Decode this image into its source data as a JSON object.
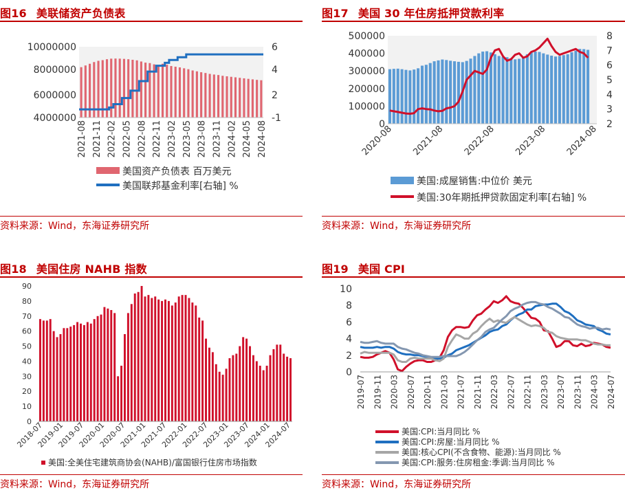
{
  "colors": {
    "title_red": "#c00000",
    "bar_red": "#e06670",
    "line_blue": "#1f6fc0",
    "bar_blue": "#5b9bd5",
    "line_red": "#d0102a",
    "gray": "#a6a6a6",
    "slate": "#8497b0",
    "ncp_bar": "#d0102a"
  },
  "panels": [
    {
      "fig": "图16",
      "title": "美联储资产负债表",
      "source": "资料来源：Wind，东海证券研究所"
    },
    {
      "fig": "图17",
      "title": "美国 30 年住房抵押贷款利率",
      "source": "资料来源：Wind，东海证券研究所"
    },
    {
      "fig": "图18",
      "title": "美国住房 NAHB 指数",
      "source": "资料来源：Wind，东海证券研究所"
    },
    {
      "fig": "图19",
      "title": "美国 CPI",
      "source": "资料来源：Wind，东海证券研究所"
    }
  ],
  "chart_data": [
    {
      "type": "bar",
      "title": "美联储资产负债表",
      "x_ticks": [
        "2021-08",
        "2021-11",
        "2022-02",
        "2022-05",
        "2022-08",
        "2022-11",
        "2023-02",
        "2023-05",
        "2023-08",
        "2023-11",
        "2024-02",
        "2024-05",
        "2024-08"
      ],
      "y_ticks": [
        "10000000",
        "8000000",
        "6000000",
        "4000000"
      ],
      "y2_ticks": [
        "6",
        "4",
        "2",
        "-1"
      ],
      "ylim": [
        4000000,
        10500000
      ],
      "y2lim": [
        -1,
        7
      ],
      "series": [
        {
          "name": "美国资产负债表 百万美元",
          "kind": "bar",
          "axis": "left",
          "values": [
            8200000,
            8350000,
            8500000,
            8650000,
            8760000,
            8820000,
            8900000,
            8950000,
            8960000,
            8950000,
            8930000,
            8900000,
            8850000,
            8800000,
            8700000,
            8600000,
            8560000,
            8450000,
            8380000,
            8500000,
            8420000,
            8300000,
            8240000,
            8180000,
            8100000,
            8020000,
            7920000,
            7850000,
            7780000,
            7720000,
            7650000,
            7600000,
            7560000,
            7500000,
            7460000,
            7420000,
            7380000,
            7340000,
            7300000,
            7260000,
            7220000,
            7180000,
            7150000
          ]
        },
        {
          "name": "美国联邦基金利率[右轴] %",
          "kind": "line",
          "axis": "right",
          "values": [
            0.08,
            0.08,
            0.08,
            0.08,
            0.08,
            0.08,
            0.08,
            0.33,
            0.77,
            0.77,
            1.58,
            1.58,
            2.33,
            2.33,
            3.08,
            3.08,
            3.83,
            3.83,
            4.33,
            4.33,
            4.58,
            4.83,
            4.83,
            5.08,
            5.08,
            5.33,
            5.33,
            5.33,
            5.33,
            5.33,
            5.33,
            5.33,
            5.33,
            5.33,
            5.33,
            5.33,
            5.33,
            5.33,
            5.33,
            5.33,
            5.33,
            5.33,
            5.33
          ]
        }
      ]
    },
    {
      "type": "bar",
      "title": "美国 30 年住房抵押贷款利率",
      "x_ticks": [
        "2020-08",
        "2021-08",
        "2022-08",
        "2023-08",
        "2024-08"
      ],
      "y_ticks": [
        "500000",
        "400000",
        "300000",
        "200000",
        "100000",
        "0"
      ],
      "y2_ticks": [
        "8",
        "7",
        "6",
        "5",
        "4",
        "3",
        "2"
      ],
      "ylim": [
        0,
        500000
      ],
      "y2lim": [
        2,
        8
      ],
      "series": [
        {
          "name": "美国:成屋销售:中位价 美元",
          "kind": "bar",
          "axis": "left",
          "values": [
            310000,
            312000,
            313000,
            310000,
            306000,
            303000,
            308000,
            315000,
            330000,
            335000,
            345000,
            355000,
            360000,
            365000,
            362000,
            358000,
            355000,
            352000,
            350000,
            357000,
            370000,
            385000,
            400000,
            410000,
            412000,
            405000,
            395000,
            385000,
            380000,
            378000,
            372000,
            366000,
            369000,
            380000,
            395000,
            405000,
            410000,
            408000,
            400000,
            393000,
            387000,
            382000,
            385000,
            390000,
            395000,
            406000,
            415000,
            425000,
            424000,
            420000
          ]
        },
        {
          "name": "美国:30年期抵押贷款固定利率[右轴] %",
          "kind": "line",
          "axis": "right",
          "values": [
            2.9,
            2.85,
            2.8,
            2.75,
            2.7,
            2.68,
            2.72,
            3.0,
            3.05,
            3.0,
            2.98,
            2.9,
            2.85,
            2.88,
            3.05,
            3.1,
            3.2,
            3.5,
            4.2,
            5.0,
            5.3,
            5.6,
            5.5,
            5.4,
            5.7,
            6.5,
            7.0,
            7.1,
            6.6,
            6.3,
            6.4,
            6.7,
            6.8,
            6.5,
            6.6,
            6.9,
            7.0,
            7.2,
            7.5,
            7.8,
            7.3,
            6.9,
            6.7,
            6.8,
            6.9,
            7.0,
            7.1,
            6.9,
            6.8,
            6.5
          ]
        }
      ]
    },
    {
      "type": "bar",
      "title": "美国住房 NAHB 指数",
      "x_ticks": [
        "2018-07",
        "2019-01",
        "2019-07",
        "2020-01",
        "2020-07",
        "2021-01",
        "2021-07",
        "2022-01",
        "2022-07",
        "2023-01",
        "2023-07",
        "2024-01",
        "2024-07"
      ],
      "y_ticks": [
        "90",
        "80",
        "70",
        "60",
        "50",
        "40",
        "30",
        "20",
        "10",
        "0"
      ],
      "ylim": [
        0,
        90
      ],
      "series": [
        {
          "name": "美国:全美住宅建筑商协会(NAHB)/富国银行住房市场指数",
          "kind": "bar",
          "values": [
            68,
            67,
            67,
            68,
            60,
            56,
            58,
            62,
            62,
            63,
            64,
            66,
            65,
            64,
            66,
            65,
            68,
            70,
            71,
            76,
            75,
            74,
            72,
            30,
            37,
            58,
            72,
            78,
            85,
            86,
            90,
            83,
            84,
            82,
            83,
            81,
            80,
            81,
            80,
            77,
            79,
            83,
            84,
            84,
            82,
            79,
            77,
            69,
            67,
            55,
            49,
            46,
            38,
            33,
            31,
            35,
            42,
            44,
            45,
            50,
            56,
            55,
            50,
            44,
            40,
            37,
            34,
            37,
            44,
            48,
            51,
            51,
            45,
            43,
            42
          ]
        }
      ]
    },
    {
      "type": "line",
      "title": "美国 CPI",
      "x_ticks": [
        "2019-07",
        "2019-11",
        "2020-03",
        "2020-07",
        "2020-11",
        "2021-03",
        "2021-07",
        "2021-11",
        "2022-03",
        "2022-07",
        "2022-11",
        "2023-03",
        "2023-07",
        "2023-11",
        "2024-03",
        "2024-07"
      ],
      "y_ticks": [
        "10",
        "8",
        "6",
        "4",
        "2",
        "0"
      ],
      "ylim": [
        0,
        10
      ],
      "series": [
        {
          "name": "美国:CPI:当月同比 %",
          "color": "#d0102a",
          "values": [
            1.8,
            1.7,
            1.7,
            1.8,
            2.1,
            2.3,
            2.5,
            2.3,
            1.5,
            0.3,
            0.1,
            0.6,
            1.0,
            1.3,
            1.4,
            1.4,
            1.2,
            1.2,
            1.4,
            1.7,
            2.6,
            4.2,
            5.0,
            5.4,
            5.4,
            5.3,
            5.4,
            6.2,
            6.8,
            7.0,
            7.5,
            7.9,
            8.5,
            8.3,
            8.6,
            9.1,
            8.5,
            8.3,
            8.2,
            7.7,
            7.1,
            6.5,
            6.4,
            6.0,
            5.0,
            4.9,
            4.0,
            3.0,
            3.2,
            3.7,
            3.7,
            3.2,
            3.1,
            3.4,
            3.1,
            3.2,
            3.5,
            3.4,
            3.3,
            3.0,
            2.9
          ]
        },
        {
          "name": "美国:CPI:房屋:当月同比 %",
          "color": "#1f6fc0",
          "values": [
            3.0,
            2.9,
            2.9,
            2.9,
            3.0,
            2.9,
            3.0,
            3.0,
            2.8,
            2.4,
            2.2,
            2.1,
            2.1,
            2.0,
            2.0,
            1.9,
            1.8,
            1.7,
            1.6,
            1.6,
            1.7,
            2.0,
            2.2,
            2.6,
            2.8,
            3.0,
            3.2,
            3.5,
            3.8,
            4.1,
            4.4,
            4.8,
            5.0,
            5.1,
            5.5,
            5.7,
            6.2,
            6.6,
            6.9,
            7.1,
            7.5,
            7.5,
            7.9,
            8.0,
            8.1,
            8.1,
            8.2,
            8.2,
            7.8,
            7.3,
            7.1,
            6.7,
            6.2,
            6.0,
            5.7,
            5.6,
            5.5,
            5.1,
            4.9,
            4.6,
            4.5
          ]
        },
        {
          "name": "美国:核心CPI(不含食物、能源):当月同比 %",
          "color": "#a6a6a6",
          "values": [
            2.2,
            2.4,
            2.3,
            2.3,
            2.3,
            2.3,
            2.3,
            2.3,
            2.1,
            1.4,
            1.2,
            1.2,
            1.6,
            1.7,
            1.6,
            1.6,
            1.6,
            1.6,
            1.4,
            1.3,
            1.6,
            3.0,
            3.8,
            4.5,
            4.3,
            4.0,
            4.0,
            4.6,
            4.9,
            5.5,
            6.0,
            6.4,
            6.0,
            6.2,
            6.0,
            5.9,
            6.3,
            6.6,
            6.3,
            6.0,
            5.7,
            5.5,
            5.6,
            5.5,
            5.3,
            4.8,
            4.7,
            4.3,
            4.1,
            4.0,
            3.9,
            3.9,
            3.9,
            3.8,
            3.8,
            3.6,
            3.4,
            3.3,
            3.3,
            3.2,
            3.2
          ]
        },
        {
          "name": "美国:CPI:服务:住房租金:季调:当月同比 %",
          "color": "#8497b0",
          "values": [
            3.6,
            3.5,
            3.5,
            3.6,
            3.7,
            3.5,
            3.4,
            3.4,
            3.4,
            3.0,
            2.8,
            2.7,
            2.5,
            2.3,
            2.2,
            2.0,
            1.9,
            1.8,
            1.8,
            1.8,
            1.9,
            1.9,
            1.9,
            1.9,
            2.1,
            2.4,
            2.8,
            3.3,
            3.8,
            4.2,
            4.8,
            5.1,
            5.3,
            5.8,
            6.3,
            6.7,
            7.3,
            7.6,
            7.8,
            8.1,
            8.3,
            8.4,
            8.4,
            8.2,
            8.1,
            7.8,
            7.6,
            7.3,
            7.0,
            6.6,
            6.5,
            6.1,
            5.7,
            5.5,
            5.4,
            5.2,
            5.3,
            5.3,
            5.1,
            5.2,
            5.1
          ]
        }
      ]
    }
  ]
}
